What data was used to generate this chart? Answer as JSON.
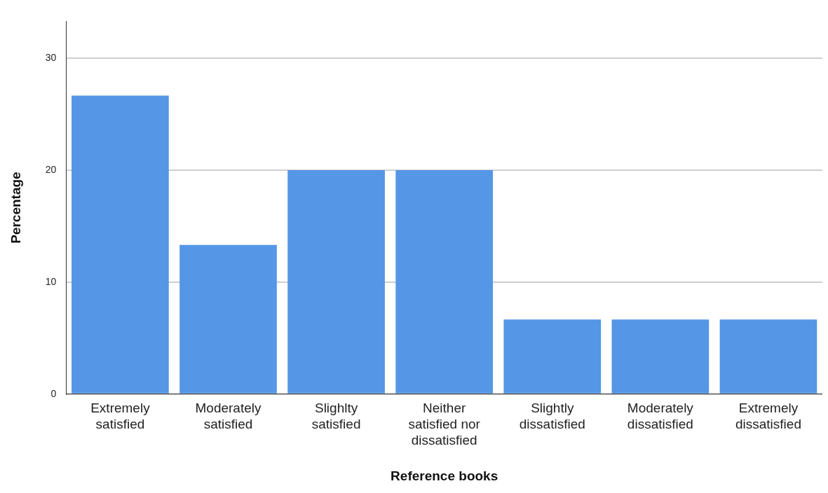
{
  "chart_data": {
    "type": "bar",
    "xlabel": "Reference books",
    "ylabel": "Percentage",
    "categories": [
      "Extremely satisfied",
      "Moderately satisfied",
      "Slighlty satisfied",
      "Neither satisfied nor dissatisfied",
      "Slightly dissatisfied",
      "Moderately dissatisfied",
      "Extremely dissatisfied"
    ],
    "values": [
      26.67,
      13.33,
      20,
      20,
      6.67,
      6.67,
      6.67
    ],
    "color": "#5596e6",
    "ylim": [
      0,
      33.3
    ],
    "yticks": [
      0,
      10,
      20,
      30
    ],
    "grid": "y",
    "legend": false
  }
}
